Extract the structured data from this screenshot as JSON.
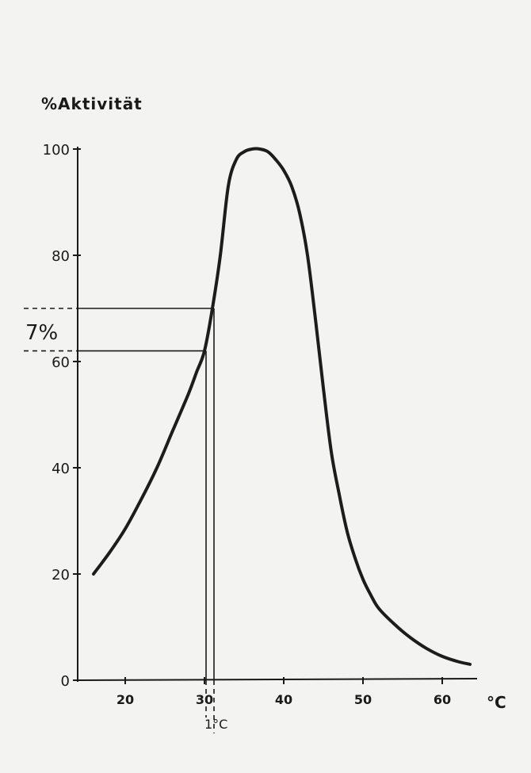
{
  "chart_data": {
    "type": "line",
    "ylabel": "%Aktivität",
    "xlabel": "°C",
    "xlim": [
      15,
      65
    ],
    "ylim": [
      0,
      100
    ],
    "x_ticks": [
      20,
      30,
      40,
      50,
      60
    ],
    "y_ticks": [
      0,
      20,
      40,
      60,
      80,
      100
    ],
    "grid": false,
    "legend": "none",
    "line_color": "#1c1c1c",
    "series": [
      {
        "x": [
          16,
          18,
          20,
          22,
          24,
          26,
          28,
          29,
          30,
          31,
          32,
          33,
          34,
          35,
          36,
          37,
          38,
          39,
          40,
          41,
          42,
          43,
          44,
          45,
          46,
          47,
          48,
          49,
          50,
          51,
          52,
          54,
          56,
          58,
          60,
          62,
          63.5
        ],
        "y": [
          20,
          24,
          28.5,
          34,
          40,
          47,
          54,
          58,
          62,
          70,
          80,
          93,
          98,
          99.5,
          100,
          100,
          99.5,
          98,
          96,
          93,
          88,
          80,
          68,
          55,
          43,
          35,
          28,
          23,
          19,
          16,
          13.5,
          10.5,
          8,
          6,
          4.5,
          3.5,
          3
        ]
      }
    ],
    "annotations": {
      "delta_label": "7%",
      "delta_y": [
        62,
        70
      ],
      "delta_x": [
        30,
        31
      ],
      "x_step_label": "1°C"
    }
  }
}
